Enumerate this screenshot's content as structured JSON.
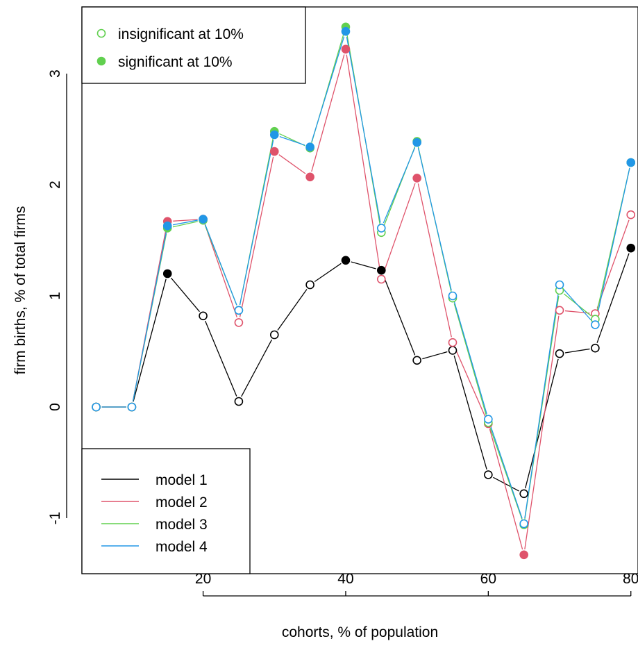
{
  "chart_data": {
    "type": "line",
    "xlabel": "cohorts, % of population",
    "ylabel": "firm births, % of total firms",
    "xlim": [
      3,
      81
    ],
    "ylim": [
      -1.5,
      3.6
    ],
    "x_ticks": [
      20,
      40,
      60,
      80
    ],
    "y_ticks": [
      -1,
      0,
      1,
      2,
      3
    ],
    "x": [
      5,
      10,
      15,
      20,
      25,
      30,
      35,
      40,
      45,
      50,
      55,
      60,
      65,
      70,
      75,
      80
    ],
    "series": [
      {
        "name": "model 1",
        "color": "#000000",
        "values": [
          0,
          0,
          1.2,
          0.82,
          0.05,
          0.65,
          1.1,
          1.32,
          1.23,
          0.42,
          0.51,
          -0.61,
          -0.78,
          0.48,
          0.53,
          1.43
        ],
        "significant": [
          false,
          false,
          true,
          false,
          false,
          false,
          false,
          true,
          true,
          false,
          false,
          false,
          false,
          false,
          false,
          true
        ]
      },
      {
        "name": "model 2",
        "color": "#DF536B",
        "values": [
          0,
          0,
          1.67,
          1.69,
          0.76,
          2.3,
          2.07,
          3.22,
          1.15,
          2.06,
          0.58,
          -0.15,
          -1.33,
          0.87,
          0.84,
          1.73
        ],
        "significant": [
          false,
          false,
          true,
          false,
          false,
          true,
          true,
          true,
          false,
          true,
          false,
          false,
          true,
          false,
          false,
          false
        ]
      },
      {
        "name": "model 3",
        "color": "#61D04F",
        "values": [
          0,
          0,
          1.61,
          1.68,
          0.87,
          2.48,
          2.33,
          3.42,
          1.57,
          2.39,
          0.98,
          -0.14,
          -1.06,
          1.05,
          0.79,
          2.2
        ],
        "significant": [
          false,
          false,
          true,
          false,
          false,
          true,
          true,
          true,
          false,
          true,
          false,
          false,
          false,
          false,
          false,
          true
        ]
      },
      {
        "name": "model 4",
        "color": "#2297E6",
        "values": [
          0,
          0,
          1.63,
          1.69,
          0.87,
          2.45,
          2.34,
          3.38,
          1.61,
          2.38,
          1.0,
          -0.11,
          -1.05,
          1.1,
          0.74,
          2.2
        ],
        "significant": [
          false,
          false,
          true,
          true,
          false,
          true,
          true,
          true,
          false,
          true,
          false,
          false,
          false,
          false,
          false,
          true
        ]
      }
    ],
    "marker_legend": [
      {
        "label": "insignificant at 10%",
        "filled": false,
        "color": "#61D04F"
      },
      {
        "label": "significant at 10%",
        "filled": true,
        "color": "#61D04F"
      }
    ],
    "legend_placement": [
      "top-left",
      "bottom-left"
    ],
    "grid": false
  }
}
